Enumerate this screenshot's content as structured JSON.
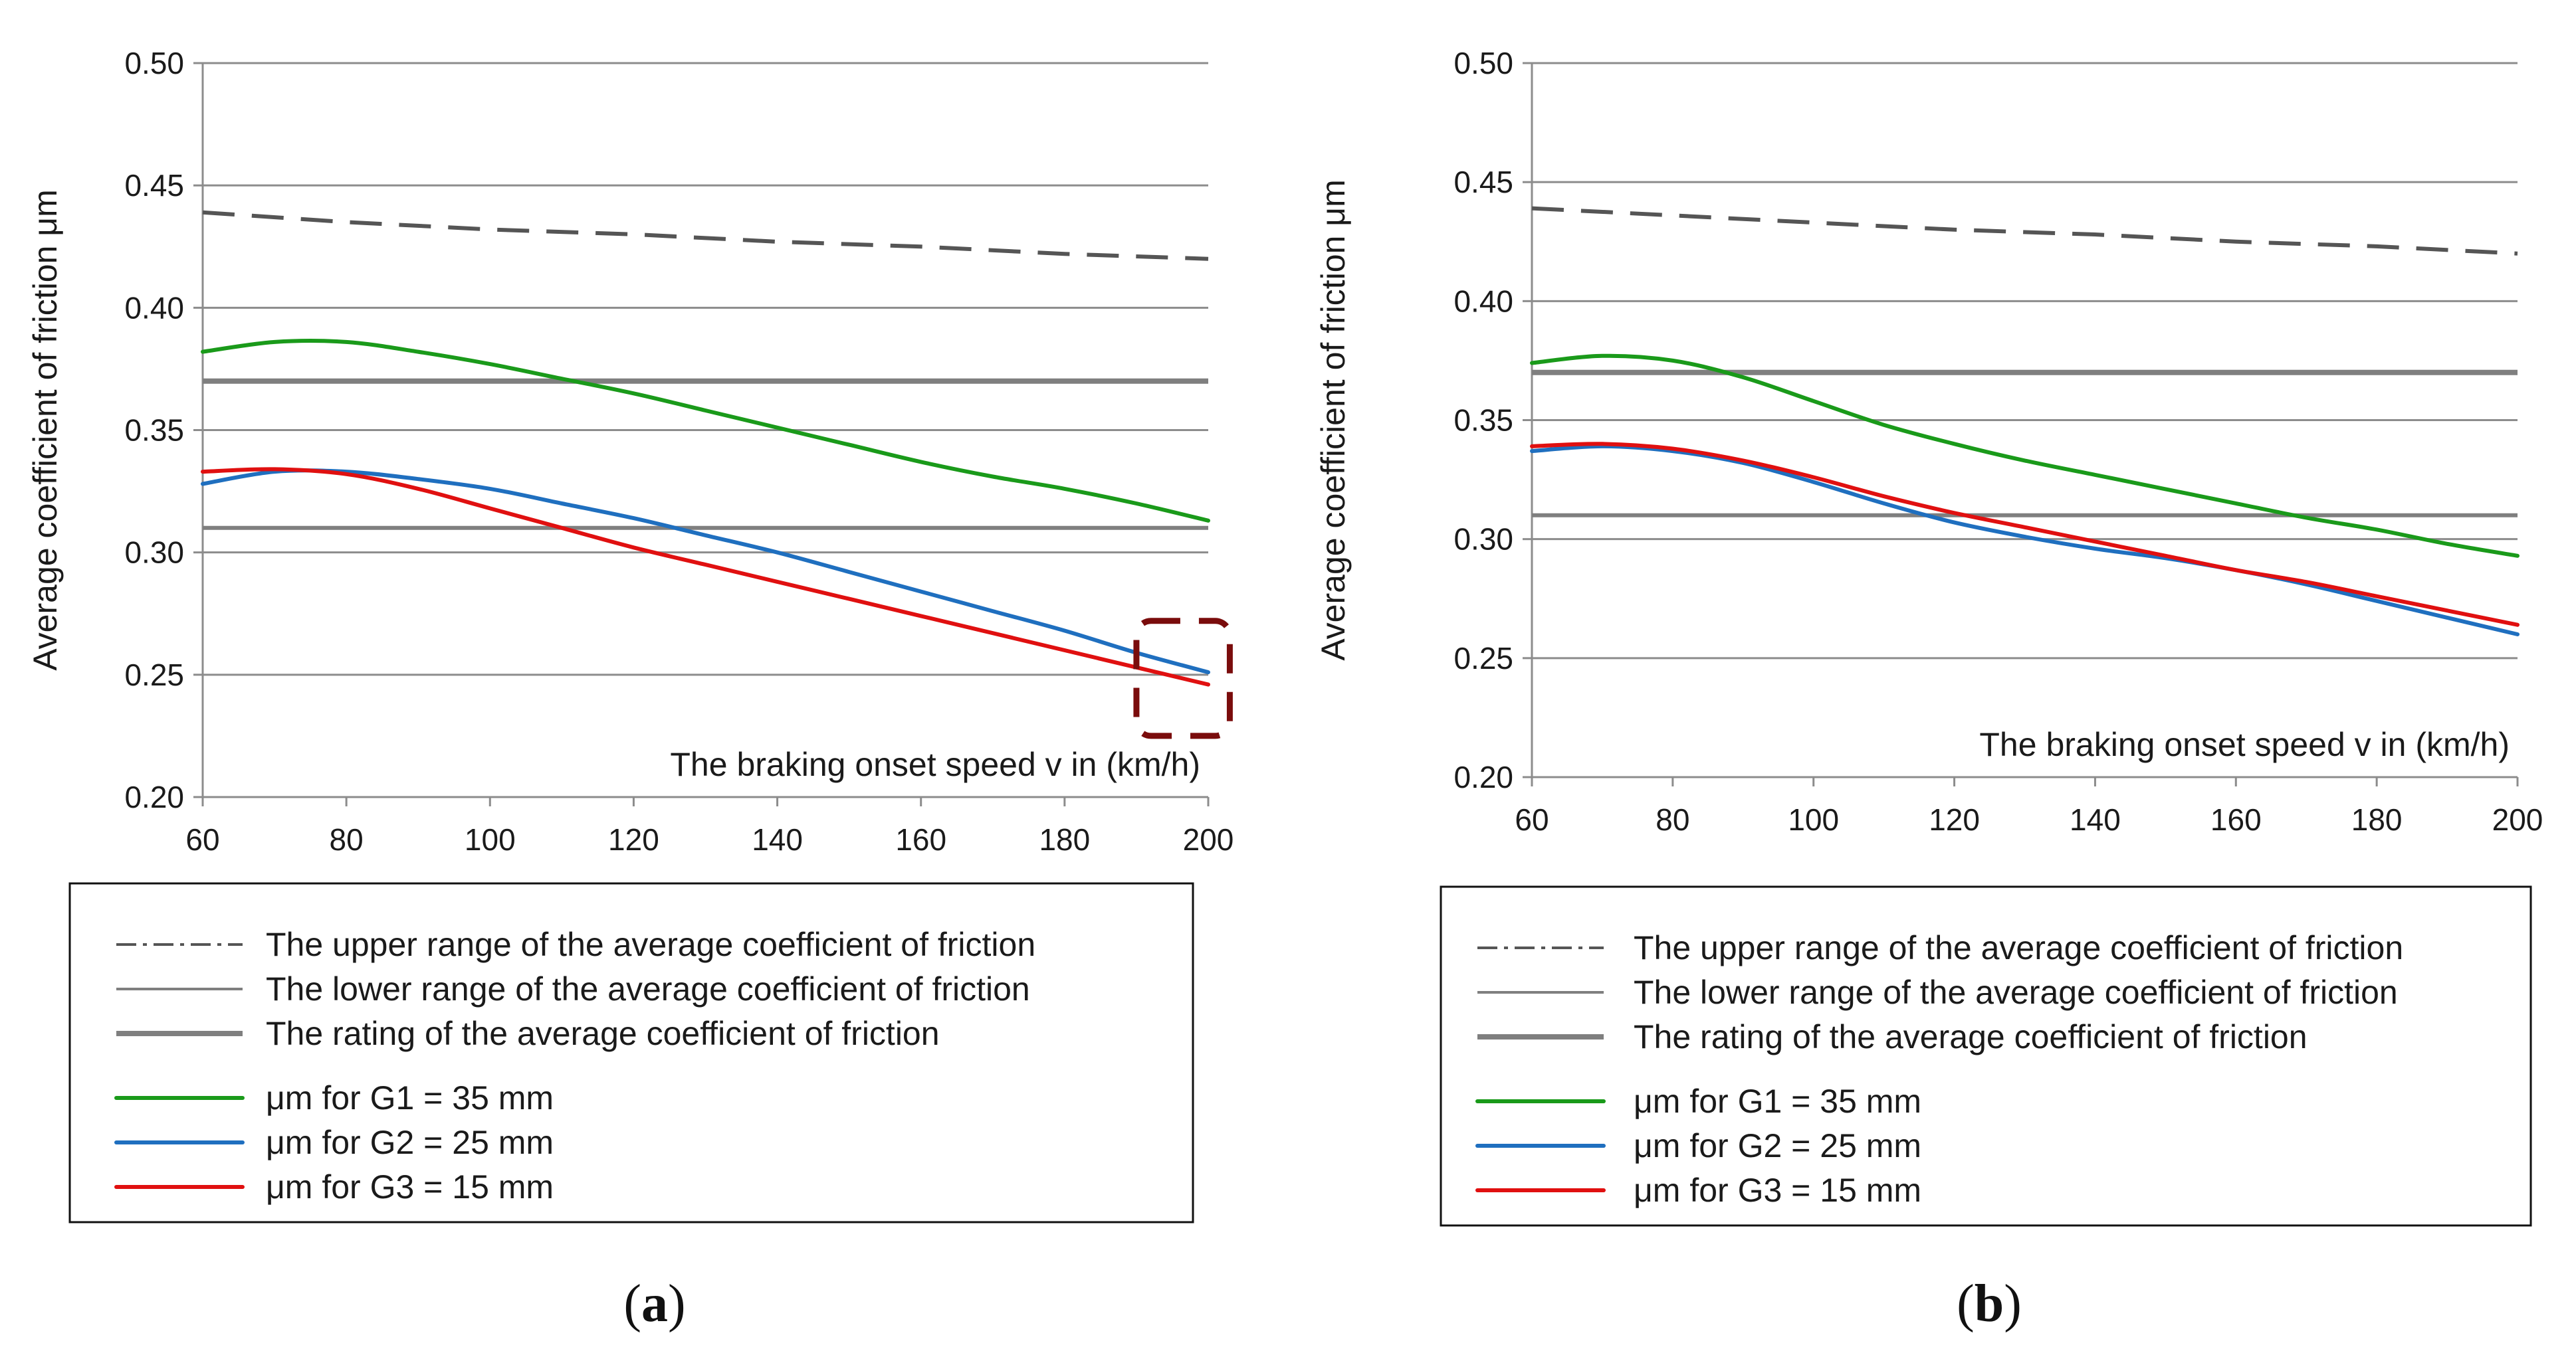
{
  "chart_data": [
    {
      "type": "line",
      "panel": "a",
      "caption": {
        "open": "(",
        "letter": "a",
        "close": ")"
      },
      "title": "",
      "xlabel": "The braking onset speed v in (km/h)",
      "ylabel": "Average coefficient of friction μm",
      "xlim": [
        60,
        200
      ],
      "ylim": [
        0.2,
        0.5
      ],
      "xticks": [
        "60",
        "80",
        "100",
        "120",
        "140",
        "160",
        "180",
        "200"
      ],
      "yticks": [
        "0.20",
        "0.25",
        "0.30",
        "0.35",
        "0.40",
        "0.45",
        "0.50"
      ],
      "grid": "horizontal",
      "legend_position": "below",
      "highlight_box": {
        "x": [
          190,
          203
        ],
        "y": [
          0.225,
          0.272
        ]
      },
      "series": [
        {
          "name": "The upper range of the average coefficient of friction",
          "style": "dashed",
          "color": "#555555",
          "x": [
            60,
            80,
            100,
            120,
            140,
            160,
            180,
            200
          ],
          "values": [
            0.439,
            0.435,
            0.432,
            0.43,
            0.427,
            0.425,
            0.422,
            0.42
          ]
        },
        {
          "name": "The lower range of the average coefficient of friction",
          "style": "thin",
          "color": "#7f7f7f",
          "x": [
            60,
            200
          ],
          "values": [
            0.31,
            0.31
          ]
        },
        {
          "name": "The rating of the average coefficient of friction",
          "style": "thick",
          "color": "#7f7f7f",
          "x": [
            60,
            200
          ],
          "values": [
            0.37,
            0.37
          ]
        },
        {
          "name": "μm for G1 = 35 mm",
          "style": "solid",
          "color": "#1a9a1a",
          "x": [
            60,
            70,
            80,
            90,
            100,
            110,
            120,
            130,
            140,
            150,
            160,
            170,
            180,
            190,
            200
          ],
          "values": [
            0.382,
            0.386,
            0.386,
            0.382,
            0.377,
            0.371,
            0.365,
            0.358,
            0.351,
            0.344,
            0.337,
            0.331,
            0.326,
            0.32,
            0.313
          ]
        },
        {
          "name": "μm for G2 = 25 mm",
          "style": "solid",
          "color": "#1f6fbf",
          "x": [
            60,
            70,
            80,
            90,
            100,
            110,
            120,
            130,
            140,
            150,
            160,
            170,
            180,
            190,
            200
          ],
          "values": [
            0.328,
            0.333,
            0.333,
            0.33,
            0.326,
            0.32,
            0.314,
            0.307,
            0.3,
            0.292,
            0.284,
            0.276,
            0.268,
            0.259,
            0.251
          ]
        },
        {
          "name": "μm for G3 = 15 mm",
          "style": "solid",
          "color": "#e01010",
          "x": [
            60,
            70,
            80,
            90,
            100,
            110,
            120,
            130,
            140,
            150,
            160,
            170,
            180,
            190,
            200
          ],
          "values": [
            0.333,
            0.334,
            0.332,
            0.326,
            0.318,
            0.31,
            0.302,
            0.295,
            0.288,
            0.281,
            0.274,
            0.267,
            0.26,
            0.253,
            0.246
          ]
        }
      ]
    },
    {
      "type": "line",
      "panel": "b",
      "caption": {
        "open": "(",
        "letter": "b",
        "close": ")"
      },
      "title": "",
      "xlabel": "The braking onset speed v in (km/h)",
      "ylabel": "Average coefficient of friction μm",
      "xlim": [
        60,
        200
      ],
      "ylim": [
        0.2,
        0.5
      ],
      "xticks": [
        "60",
        "80",
        "100",
        "120",
        "140",
        "160",
        "180",
        "200"
      ],
      "yticks": [
        "0.20",
        "0.25",
        "0.30",
        "0.35",
        "0.40",
        "0.45",
        "0.50"
      ],
      "grid": "horizontal",
      "legend_position": "below",
      "series": [
        {
          "name": "The upper range of the average coefficient of friction",
          "style": "dashed",
          "color": "#555555",
          "x": [
            60,
            80,
            100,
            120,
            140,
            160,
            180,
            200
          ],
          "values": [
            0.439,
            0.436,
            0.433,
            0.43,
            0.428,
            0.425,
            0.423,
            0.42
          ]
        },
        {
          "name": "The lower range of the average coefficient of friction",
          "style": "thin",
          "color": "#7f7f7f",
          "x": [
            60,
            200
          ],
          "values": [
            0.31,
            0.31
          ]
        },
        {
          "name": "The rating of the average coefficient of friction",
          "style": "thick",
          "color": "#7f7f7f",
          "x": [
            60,
            200
          ],
          "values": [
            0.37,
            0.37
          ]
        },
        {
          "name": "μm for G1 = 35 mm",
          "style": "solid",
          "color": "#1a9a1a",
          "x": [
            60,
            70,
            80,
            90,
            100,
            110,
            120,
            130,
            140,
            150,
            160,
            170,
            180,
            190,
            200
          ],
          "values": [
            0.374,
            0.377,
            0.375,
            0.368,
            0.358,
            0.348,
            0.34,
            0.333,
            0.327,
            0.321,
            0.315,
            0.309,
            0.304,
            0.298,
            0.293
          ]
        },
        {
          "name": "μm for G2 = 25 mm",
          "style": "solid",
          "color": "#1f6fbf",
          "x": [
            60,
            70,
            80,
            90,
            100,
            110,
            120,
            130,
            140,
            150,
            160,
            170,
            180,
            190,
            200
          ],
          "values": [
            0.337,
            0.339,
            0.337,
            0.332,
            0.324,
            0.315,
            0.307,
            0.301,
            0.296,
            0.292,
            0.287,
            0.281,
            0.274,
            0.267,
            0.26
          ]
        },
        {
          "name": "μm for G3 = 15 mm",
          "style": "solid",
          "color": "#e01010",
          "x": [
            60,
            70,
            80,
            90,
            100,
            110,
            120,
            130,
            140,
            150,
            160,
            170,
            180,
            190,
            200
          ],
          "values": [
            0.339,
            0.34,
            0.338,
            0.333,
            0.326,
            0.318,
            0.311,
            0.305,
            0.299,
            0.293,
            0.287,
            0.282,
            0.276,
            0.27,
            0.264
          ]
        }
      ]
    }
  ]
}
